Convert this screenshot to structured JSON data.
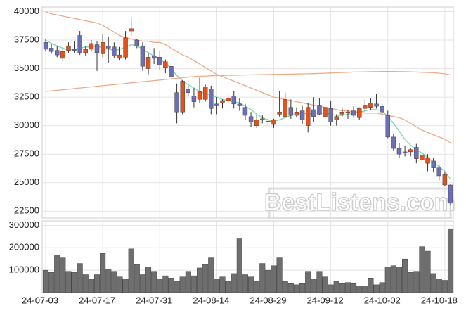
{
  "chart_data": {
    "type": "candlestick",
    "categories": [
      "24-07-03",
      null,
      null,
      null,
      null,
      null,
      null,
      null,
      null,
      null,
      "24-07-17",
      null,
      null,
      null,
      null,
      null,
      null,
      null,
      null,
      null,
      "24-07-31",
      null,
      null,
      null,
      null,
      null,
      null,
      null,
      null,
      null,
      "24-08-14",
      null,
      null,
      null,
      null,
      null,
      null,
      null,
      null,
      null,
      "24-08-29",
      null,
      null,
      null,
      null,
      null,
      null,
      null,
      null,
      null,
      "24-09-12",
      null,
      null,
      null,
      null,
      null,
      null,
      null,
      null,
      null,
      "24-10-02",
      null,
      null,
      null,
      null,
      null,
      null,
      null,
      null,
      null,
      "24-10-18",
      null
    ],
    "open": [
      37300,
      36800,
      36600,
      35900,
      36600,
      36700,
      37900,
      36400,
      36700,
      37100,
      36300,
      37000,
      36900,
      35900,
      36000,
      38300,
      37500,
      37000,
      35000,
      36100,
      36000,
      35100,
      35200,
      32900,
      31200,
      33200,
      32600,
      32300,
      32300,
      33200,
      31900,
      32000,
      32200,
      32600,
      31900,
      31600,
      30800,
      30000,
      30500,
      30400,
      30100,
      31000,
      30800,
      31600,
      30900,
      31300,
      30000,
      31400,
      31800,
      30800,
      31500,
      30500,
      31000,
      31100,
      31300,
      30700,
      31500,
      31600,
      31900,
      31700,
      30900,
      29000,
      28000,
      27700,
      27700,
      28100,
      27000,
      26700,
      26900,
      26300,
      24800,
      24800
    ],
    "high": [
      37600,
      37200,
      37000,
      36700,
      37300,
      37400,
      38300,
      37000,
      37500,
      37400,
      38000,
      37800,
      37300,
      36900,
      38300,
      39500,
      37600,
      37300,
      36400,
      36800,
      36500,
      35800,
      35600,
      33700,
      34000,
      33500,
      33300,
      34200,
      33600,
      33500,
      32500,
      32300,
      32700,
      33000,
      32400,
      31900,
      31200,
      30900,
      30900,
      30700,
      30600,
      33000,
      32900,
      32300,
      31600,
      31800,
      32000,
      32500,
      32400,
      31900,
      32200,
      31000,
      31600,
      31400,
      31700,
      31600,
      32300,
      32400,
      32800,
      31900,
      31300,
      29300,
      28500,
      28200,
      28000,
      28400,
      27600,
      27500,
      27200,
      26600,
      25900,
      24900
    ],
    "low": [
      36500,
      36300,
      36000,
      35600,
      36400,
      36400,
      36200,
      36100,
      36500,
      34800,
      36000,
      35500,
      35900,
      35700,
      35800,
      37900,
      36800,
      34800,
      34500,
      35400,
      34900,
      34600,
      34000,
      30200,
      31000,
      32600,
      31600,
      32000,
      32100,
      31000,
      31000,
      31500,
      31900,
      31500,
      31300,
      30500,
      29900,
      29800,
      30200,
      30000,
      29800,
      30800,
      30700,
      30600,
      30700,
      30100,
      29400,
      30300,
      30900,
      30600,
      30000,
      30000,
      30800,
      30600,
      30700,
      30500,
      31200,
      31400,
      31500,
      30900,
      28900,
      27800,
      27200,
      27300,
      27300,
      26700,
      26800,
      26000,
      25900,
      25200,
      24700,
      23000
    ],
    "close": [
      36700,
      36500,
      36200,
      36500,
      37000,
      36600,
      36400,
      36700,
      37200,
      36400,
      37300,
      36800,
      36100,
      36200,
      37700,
      38500,
      37000,
      35200,
      36000,
      35900,
      35300,
      35600,
      34300,
      31200,
      33900,
      32900,
      32100,
      33000,
      33400,
      31500,
      31800,
      32200,
      32400,
      31900,
      31800,
      30900,
      30300,
      30500,
      30600,
      30300,
      30500,
      31200,
      32300,
      30900,
      31200,
      30500,
      31600,
      30800,
      31000,
      31600,
      30300,
      30800,
      31200,
      31200,
      30900,
      31500,
      31800,
      32000,
      31700,
      31200,
      29000,
      28000,
      27500,
      27600,
      27900,
      27100,
      27400,
      27200,
      26300,
      25600,
      25700,
      23200
    ],
    "up_color": "#e4521c",
    "down_color": "#6b6fb4",
    "ylim": [
      21900,
      40400
    ],
    "yticks": [
      22500,
      25000,
      27500,
      30000,
      32500,
      35000,
      37500,
      40000
    ],
    "lines": [
      {
        "color": "#7fd1b2",
        "values": [
          37500,
          37200,
          37000,
          36800,
          36600,
          36700,
          36800,
          36900,
          36900,
          37000,
          36800,
          36700,
          36600,
          36700,
          36900,
          37100,
          37000,
          36700,
          36400,
          36100,
          35800,
          35500,
          35000,
          34400,
          33900,
          33600,
          33300,
          33000,
          32800,
          32700,
          32500,
          32300,
          32200,
          32100,
          32000,
          31700,
          31400,
          31000,
          30700,
          30500,
          30400,
          30500,
          30700,
          30900,
          31000,
          31100,
          31000,
          31100,
          31100,
          31100,
          31000,
          30900,
          30900,
          31000,
          31100,
          31200,
          31300,
          31400,
          31400,
          31300,
          30800,
          30200,
          29500,
          28800,
          28300,
          27900,
          27600,
          27200,
          26800,
          26400,
          26000,
          25300
        ]
      },
      {
        "color": "#eeaa88",
        "values": [
          40000,
          39800,
          39700,
          39600,
          39500,
          39400,
          39300,
          39200,
          39100,
          39000,
          38800,
          38500,
          38200,
          37900,
          37700,
          37600,
          37500,
          37400,
          37400,
          37300,
          37300,
          37100,
          36800,
          36500,
          36200,
          36000,
          35700,
          35400,
          35100,
          34800,
          34500,
          34300,
          34100,
          33900,
          33700,
          33500,
          33300,
          33100,
          32900,
          32700,
          32500,
          32400,
          32300,
          32200,
          32100,
          32000,
          31900,
          31800,
          31700,
          31600,
          31500,
          31400,
          31300,
          31300,
          31200,
          31200,
          31100,
          31100,
          31100,
          31000,
          30900,
          30800,
          30700,
          30500,
          30200,
          29900,
          29600,
          29400,
          29200,
          29000,
          28800,
          28500
        ]
      },
      {
        "color": "#eeaa88",
        "values": [
          33000,
          33050,
          33100,
          33150,
          33200,
          33250,
          33300,
          33350,
          33400,
          33450,
          33500,
          33550,
          33600,
          33650,
          33700,
          33750,
          33800,
          33850,
          33900,
          33950,
          34000,
          34050,
          34100,
          34150,
          34200,
          34250,
          34300,
          34330,
          34350,
          34370,
          34390,
          34400,
          34410,
          34420,
          34430,
          34440,
          34450,
          34460,
          34470,
          34480,
          34490,
          34500,
          34510,
          34520,
          34530,
          34540,
          34550,
          34560,
          34580,
          34600,
          34620,
          34640,
          34660,
          34680,
          34700,
          34710,
          34720,
          34730,
          34740,
          34750,
          34750,
          34750,
          34740,
          34730,
          34720,
          34700,
          34680,
          34660,
          34640,
          34600,
          34550,
          34450
        ]
      }
    ],
    "volume": {
      "color": "#6e6e6e",
      "ylim": [
        0,
        320000
      ],
      "yticks": [
        100000,
        200000,
        300000
      ],
      "values": [
        100000,
        90000,
        165000,
        155000,
        95000,
        90000,
        130000,
        80000,
        60000,
        80000,
        175000,
        105000,
        95000,
        70000,
        60000,
        195000,
        125000,
        80000,
        115000,
        95000,
        60000,
        75000,
        65000,
        50000,
        70000,
        95000,
        75000,
        110000,
        125000,
        155000,
        60000,
        70000,
        50000,
        85000,
        240000,
        80000,
        70000,
        50000,
        130000,
        100000,
        120000,
        155000,
        50000,
        40000,
        35000,
        40000,
        95000,
        60000,
        95000,
        70000,
        35000,
        50000,
        40000,
        45000,
        40000,
        30000,
        30000,
        65000,
        35000,
        45000,
        115000,
        120000,
        115000,
        150000,
        90000,
        95000,
        205000,
        185000,
        85000,
        60000,
        55000,
        285000
      ]
    },
    "watermark": "BestListens.com",
    "grid": true
  }
}
